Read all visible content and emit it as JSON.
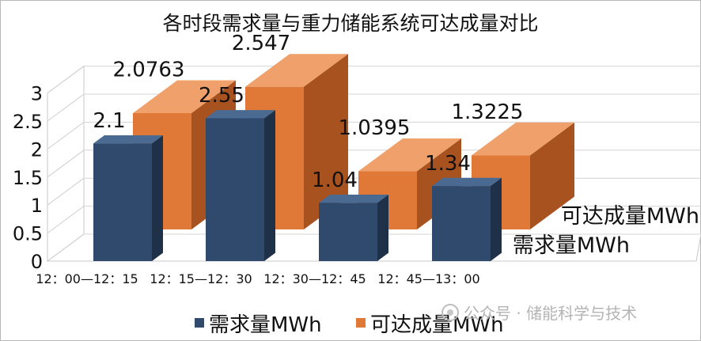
{
  "chart_data": {
    "type": "bar",
    "title": "各时段需求量与重力储能系统可达成量对比",
    "categories": [
      "12：00—12：15",
      "12：15—12：30",
      "12：30—12：45",
      "12：45—13：00"
    ],
    "series": [
      {
        "name": "需求量MWh",
        "values": [
          2.1,
          2.55,
          1.04,
          1.34
        ],
        "labels": [
          "2.1",
          "2.55",
          "1.04",
          "1.34"
        ],
        "color": "#2f4a6d"
      },
      {
        "name": "可达成量MWh",
        "values": [
          2.0763,
          2.547,
          1.0395,
          1.3225
        ],
        "labels": [
          "2.0763",
          "2.547",
          "1.0395",
          "1.3225"
        ],
        "color": "#e07838"
      }
    ],
    "y_ticks": [
      "0",
      "0.5",
      "1",
      "1.5",
      "2",
      "2.5",
      "3"
    ],
    "ylim": [
      0,
      3
    ],
    "grid": true,
    "legend_position": "bottom",
    "three_d": true
  },
  "watermark": {
    "icon": "wechat-icon",
    "text": "公众号 · 储能科学与技术"
  }
}
